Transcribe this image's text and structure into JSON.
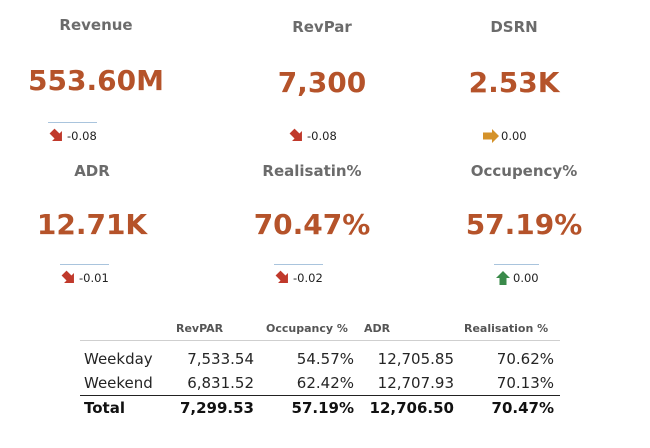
{
  "kpis": [
    {
      "title": "Revenue",
      "value": "553.60M",
      "trend": "down",
      "delta": "-0.08",
      "color": "#c0392b"
    },
    {
      "title": "RevPar",
      "value": "7,300",
      "trend": "down",
      "delta": "-0.08",
      "color": "#c0392b"
    },
    {
      "title": "DSRN",
      "value": "2.53K",
      "trend": "flat",
      "delta": "0.00",
      "color": "#d4922a"
    },
    {
      "title": "ADR",
      "value": "12.71K",
      "trend": "down",
      "delta": "-0.01",
      "color": "#c0392b"
    },
    {
      "title": "Realisatin%",
      "value": "70.47%",
      "trend": "down",
      "delta": "-0.02",
      "color": "#c0392b"
    },
    {
      "title": "Occupency%",
      "value": "57.19%",
      "trend": "up",
      "delta": "0.00",
      "color": "#3a8a4a"
    }
  ],
  "table": {
    "headers": [
      "",
      "RevPAR",
      "Occupancy %",
      "ADR",
      "Realisation %"
    ],
    "rows": [
      [
        "Weekday",
        "7,533.54",
        "54.57%",
        "12,705.85",
        "70.62%"
      ],
      [
        "Weekend",
        "6,831.52",
        "62.42%",
        "12,707.93",
        "70.13%"
      ]
    ],
    "total": [
      "Total",
      "7,299.53",
      "57.19%",
      "12,706.50",
      "70.47%"
    ]
  }
}
